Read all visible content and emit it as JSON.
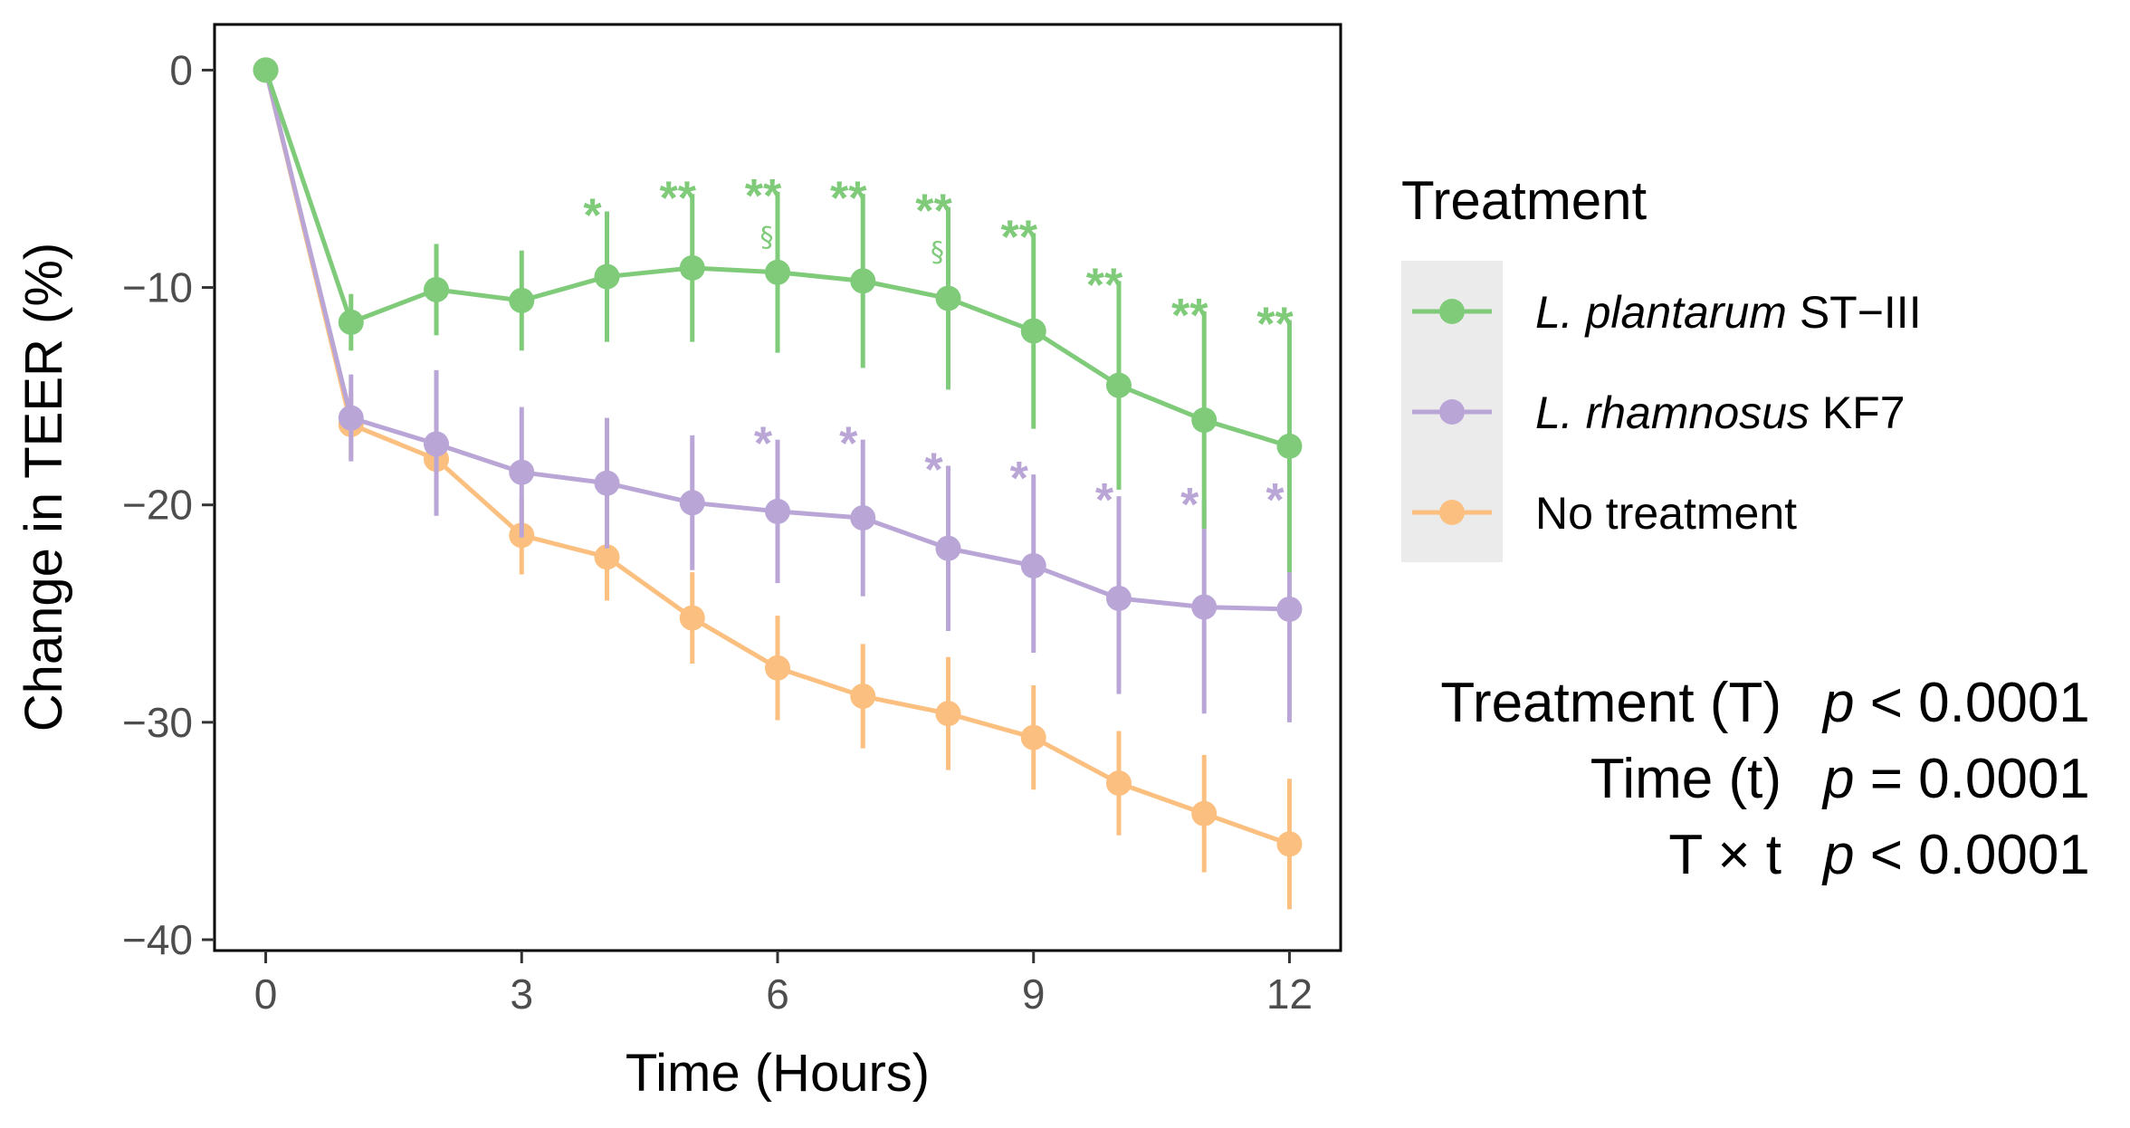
{
  "chart_data": {
    "type": "line",
    "title": "",
    "xlabel": "Time (Hours)",
    "ylabel": "Change in TEER (%)",
    "xlim": [
      -0.6,
      12.6
    ],
    "ylim": [
      -40.5,
      2.1
    ],
    "xticks": [
      0,
      3,
      6,
      9,
      12
    ],
    "xtick_labels": [
      "0",
      "3",
      "6",
      "9",
      "12"
    ],
    "yticks": [
      0,
      -10,
      -20,
      -30,
      -40
    ],
    "ytick_labels": [
      "0",
      "−10",
      "−20",
      "−30",
      "−40"
    ],
    "x": [
      0,
      1,
      2,
      3,
      4,
      5,
      6,
      7,
      8,
      9,
      10,
      11,
      12
    ],
    "grid": false,
    "legend": {
      "title": "Treatment",
      "position": "right"
    },
    "series": [
      {
        "name": "L. plantarum ST−III",
        "name_italic": "L. plantarum",
        "name_rest": " ST−III",
        "color": "#7fcb7a",
        "values": [
          0,
          -11.6,
          -10.1,
          -10.6,
          -9.5,
          -9.1,
          -9.3,
          -9.7,
          -10.5,
          -12.0,
          -14.5,
          -16.1,
          -17.3
        ],
        "err_low": [
          0,
          -12.9,
          -12.2,
          -12.9,
          -12.5,
          -12.5,
          -13.0,
          -13.7,
          -14.7,
          -16.5,
          -19.3,
          -21.1,
          -23.1
        ],
        "err_high": [
          0,
          -10.3,
          -8.0,
          -8.3,
          -6.5,
          -5.7,
          -5.6,
          -5.7,
          -6.3,
          -7.5,
          -9.7,
          -11.1,
          -11.5
        ],
        "annotations": [
          {
            "x": 4,
            "text": "*"
          },
          {
            "x": 5,
            "text": "**"
          },
          {
            "x": 6,
            "text": "**",
            "sub": "§"
          },
          {
            "x": 7,
            "text": "**"
          },
          {
            "x": 8,
            "text": "**",
            "sub": "§"
          },
          {
            "x": 9,
            "text": "**"
          },
          {
            "x": 10,
            "text": "**"
          },
          {
            "x": 11,
            "text": "**"
          },
          {
            "x": 12,
            "text": "**"
          }
        ]
      },
      {
        "name": "L. rhamnosus KF7",
        "name_italic": "L. rhamnosus",
        "name_rest": " KF7",
        "color": "#b9a6d6",
        "values": [
          0,
          -16.0,
          -17.2,
          -18.5,
          -19.0,
          -19.9,
          -20.3,
          -20.6,
          -22.0,
          -22.8,
          -24.3,
          -24.7,
          -24.8
        ],
        "err_low": [
          0,
          -18.0,
          -20.5,
          -21.5,
          -22.0,
          -23.0,
          -23.6,
          -24.2,
          -25.8,
          -26.8,
          -28.7,
          -29.6,
          -30.0
        ],
        "err_high": [
          0,
          -14.0,
          -13.8,
          -15.5,
          -16.0,
          -16.8,
          -17.0,
          -17.0,
          -18.2,
          -18.6,
          -19.6,
          -19.8,
          -19.6
        ],
        "annotations": [
          {
            "x": 6,
            "text": "*"
          },
          {
            "x": 7,
            "text": "*"
          },
          {
            "x": 8,
            "text": "*"
          },
          {
            "x": 9,
            "text": "*"
          },
          {
            "x": 10,
            "text": "*"
          },
          {
            "x": 11,
            "text": "*"
          },
          {
            "x": 12,
            "text": "*"
          }
        ]
      },
      {
        "name": "No treatment",
        "name_italic": "",
        "name_rest": "No treatment",
        "color": "#fbbf80",
        "values": [
          0,
          -16.3,
          -17.9,
          -21.4,
          -22.4,
          -25.2,
          -27.5,
          -28.8,
          -29.6,
          -30.7,
          -32.8,
          -34.2,
          -35.6
        ],
        "err_low": [
          0,
          -17.8,
          -19.9,
          -23.2,
          -24.4,
          -27.3,
          -29.9,
          -31.2,
          -32.2,
          -33.1,
          -35.2,
          -36.9,
          -38.6
        ],
        "err_high": [
          0,
          -14.8,
          -15.9,
          -19.6,
          -20.4,
          -23.1,
          -25.1,
          -26.4,
          -27.0,
          -28.3,
          -30.4,
          -31.5,
          -32.6
        ],
        "annotations": []
      }
    ],
    "stats": [
      {
        "label": "Treatment (T)",
        "p_symbol": "p",
        "p_text": " < 0.0001"
      },
      {
        "label": "Time (t)",
        "p_symbol": "p",
        "p_text": " = 0.0001"
      },
      {
        "label": "T × t",
        "p_symbol": "p",
        "p_text": " < 0.0001"
      }
    ]
  }
}
